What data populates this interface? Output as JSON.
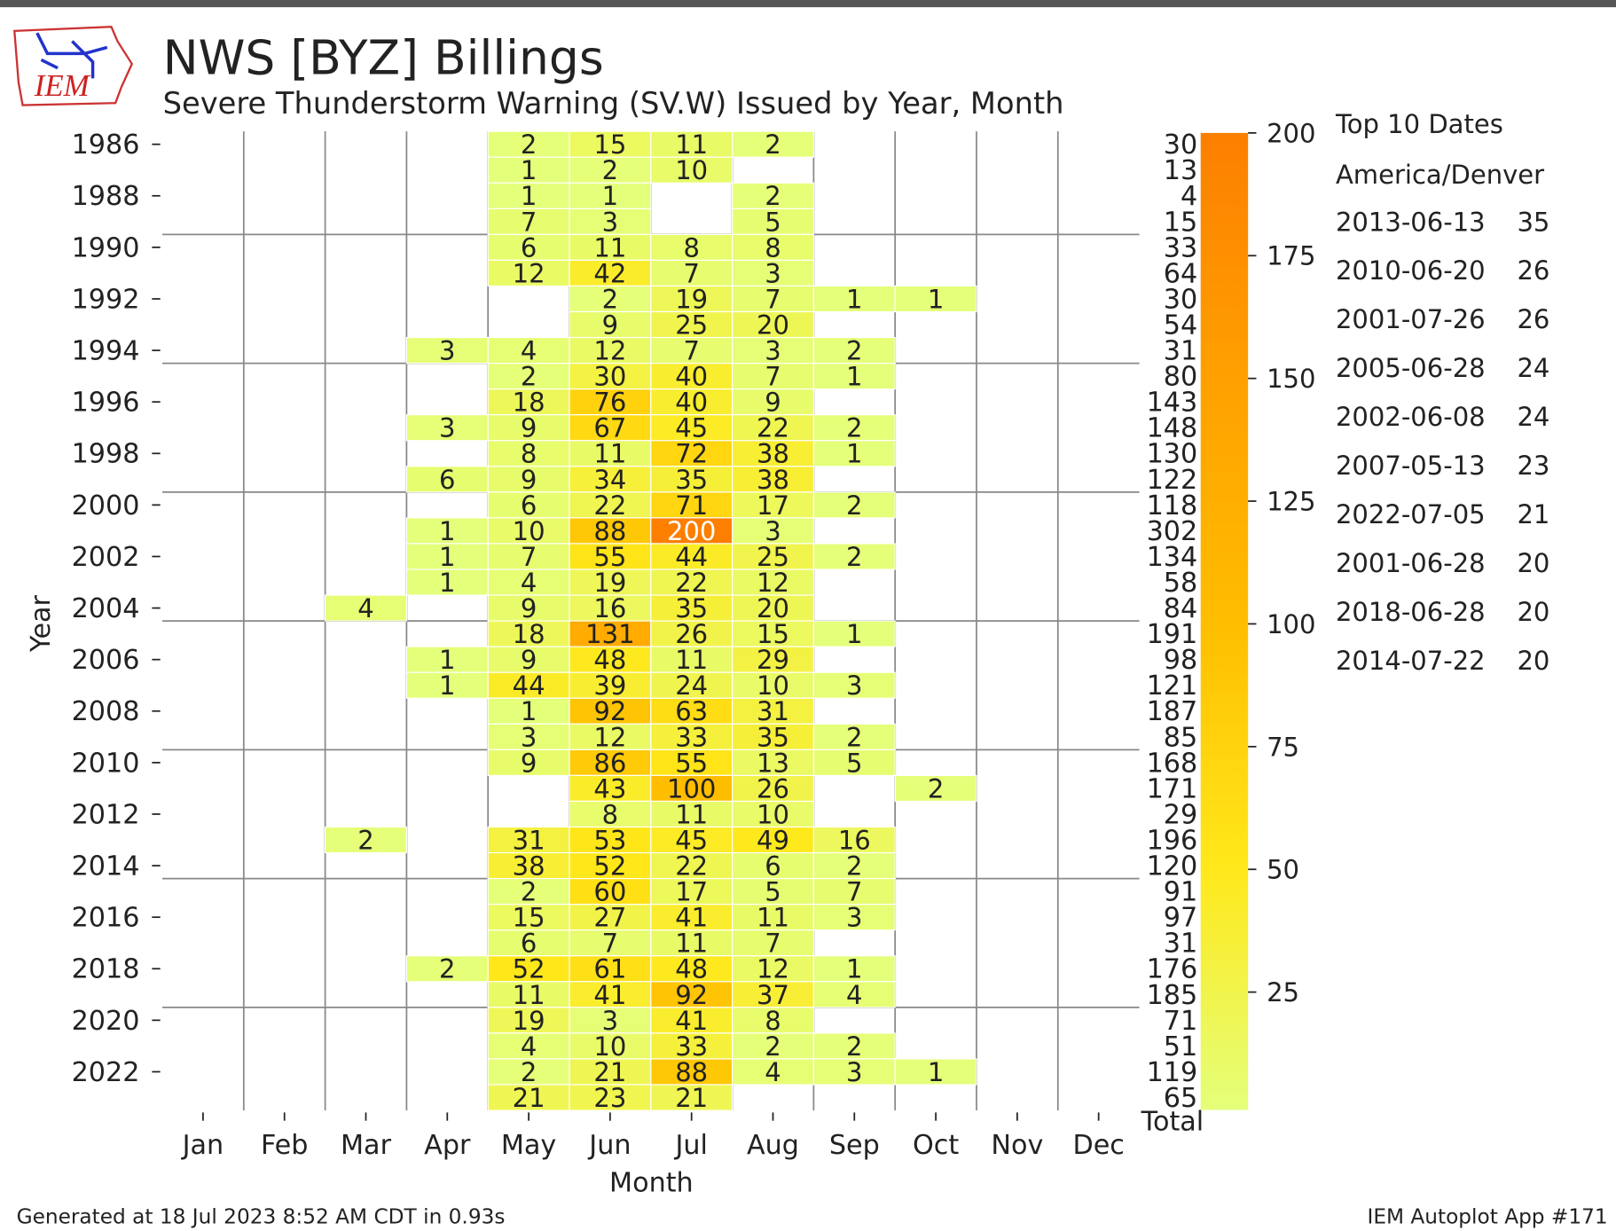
{
  "chart_data": {
    "type": "heatmap",
    "title": "NWS [BYZ] Billings",
    "subtitle": "Severe Thunderstorm Warning (SV.W) Issued by Year, Month",
    "xlabel": "Month",
    "ylabel": "Year",
    "total_label": "Total",
    "logo_text": "IEM",
    "footer_left": "Generated at 18 Jul 2023 8:52 AM CDT in 0.93s",
    "footer_right": "IEM Autoplot App #171",
    "categories": [
      "Jan",
      "Feb",
      "Mar",
      "Apr",
      "May",
      "Jun",
      "Jul",
      "Aug",
      "Sep",
      "Oct",
      "Nov",
      "Dec"
    ],
    "years": [
      1986,
      1987,
      1988,
      1989,
      1990,
      1991,
      1992,
      1993,
      1994,
      1995,
      1996,
      1997,
      1998,
      1999,
      2000,
      2001,
      2002,
      2003,
      2004,
      2005,
      2006,
      2007,
      2008,
      2009,
      2010,
      2011,
      2012,
      2013,
      2014,
      2015,
      2016,
      2017,
      2018,
      2019,
      2020,
      2021,
      2022,
      2023
    ],
    "yticks": [
      1986,
      1988,
      1990,
      1992,
      1994,
      1996,
      1998,
      2000,
      2002,
      2004,
      2006,
      2008,
      2010,
      2012,
      2014,
      2016,
      2018,
      2020,
      2022
    ],
    "values": [
      [
        null,
        null,
        null,
        null,
        2,
        15,
        11,
        2,
        null,
        null,
        null,
        null
      ],
      [
        null,
        null,
        null,
        null,
        1,
        2,
        10,
        null,
        null,
        null,
        null,
        null
      ],
      [
        null,
        null,
        null,
        null,
        1,
        1,
        null,
        2,
        null,
        null,
        null,
        null
      ],
      [
        null,
        null,
        null,
        null,
        7,
        3,
        null,
        5,
        null,
        null,
        null,
        null
      ],
      [
        null,
        null,
        null,
        null,
        6,
        11,
        8,
        8,
        null,
        null,
        null,
        null
      ],
      [
        null,
        null,
        null,
        null,
        12,
        42,
        7,
        3,
        null,
        null,
        null,
        null
      ],
      [
        null,
        null,
        null,
        null,
        null,
        2,
        19,
        7,
        1,
        1,
        null,
        null
      ],
      [
        null,
        null,
        null,
        null,
        null,
        9,
        25,
        20,
        null,
        null,
        null,
        null
      ],
      [
        null,
        null,
        null,
        3,
        4,
        12,
        7,
        3,
        2,
        null,
        null,
        null
      ],
      [
        null,
        null,
        null,
        null,
        2,
        30,
        40,
        7,
        1,
        null,
        null,
        null
      ],
      [
        null,
        null,
        null,
        null,
        18,
        76,
        40,
        9,
        null,
        null,
        null,
        null
      ],
      [
        null,
        null,
        null,
        3,
        9,
        67,
        45,
        22,
        2,
        null,
        null,
        null
      ],
      [
        null,
        null,
        null,
        null,
        8,
        11,
        72,
        38,
        1,
        null,
        null,
        null
      ],
      [
        null,
        null,
        null,
        6,
        9,
        34,
        35,
        38,
        null,
        null,
        null,
        null
      ],
      [
        null,
        null,
        null,
        null,
        6,
        22,
        71,
        17,
        2,
        null,
        null,
        null
      ],
      [
        null,
        null,
        null,
        1,
        10,
        88,
        200,
        3,
        null,
        null,
        null,
        null
      ],
      [
        null,
        null,
        null,
        1,
        7,
        55,
        44,
        25,
        2,
        null,
        null,
        null
      ],
      [
        null,
        null,
        null,
        1,
        4,
        19,
        22,
        12,
        null,
        null,
        null,
        null
      ],
      [
        null,
        null,
        4,
        null,
        9,
        16,
        35,
        20,
        null,
        null,
        null,
        null
      ],
      [
        null,
        null,
        null,
        null,
        18,
        131,
        26,
        15,
        1,
        null,
        null,
        null
      ],
      [
        null,
        null,
        null,
        1,
        9,
        48,
        11,
        29,
        null,
        null,
        null,
        null
      ],
      [
        null,
        null,
        null,
        1,
        44,
        39,
        24,
        10,
        3,
        null,
        null,
        null
      ],
      [
        null,
        null,
        null,
        null,
        1,
        92,
        63,
        31,
        null,
        null,
        null,
        null
      ],
      [
        null,
        null,
        null,
        null,
        3,
        12,
        33,
        35,
        2,
        null,
        null,
        null
      ],
      [
        null,
        null,
        null,
        null,
        9,
        86,
        55,
        13,
        5,
        null,
        null,
        null
      ],
      [
        null,
        null,
        null,
        null,
        null,
        43,
        100,
        26,
        null,
        2,
        null,
        null
      ],
      [
        null,
        null,
        null,
        null,
        null,
        8,
        11,
        10,
        null,
        null,
        null,
        null
      ],
      [
        null,
        null,
        2,
        null,
        31,
        53,
        45,
        49,
        16,
        null,
        null,
        null
      ],
      [
        null,
        null,
        null,
        null,
        38,
        52,
        22,
        6,
        2,
        null,
        null,
        null
      ],
      [
        null,
        null,
        null,
        null,
        2,
        60,
        17,
        5,
        7,
        null,
        null,
        null
      ],
      [
        null,
        null,
        null,
        null,
        15,
        27,
        41,
        11,
        3,
        null,
        null,
        null
      ],
      [
        null,
        null,
        null,
        null,
        6,
        7,
        11,
        7,
        null,
        null,
        null,
        null
      ],
      [
        null,
        null,
        null,
        2,
        52,
        61,
        48,
        12,
        1,
        null,
        null,
        null
      ],
      [
        null,
        null,
        null,
        null,
        11,
        41,
        92,
        37,
        4,
        null,
        null,
        null
      ],
      [
        null,
        null,
        null,
        null,
        19,
        3,
        41,
        8,
        null,
        null,
        null,
        null
      ],
      [
        null,
        null,
        null,
        null,
        4,
        10,
        33,
        2,
        2,
        null,
        null,
        null
      ],
      [
        null,
        null,
        null,
        null,
        2,
        21,
        88,
        4,
        3,
        1,
        null,
        null
      ],
      [
        null,
        null,
        null,
        null,
        21,
        23,
        21,
        null,
        null,
        null,
        null,
        null
      ]
    ],
    "totals": [
      30,
      13,
      4,
      15,
      33,
      64,
      30,
      54,
      31,
      80,
      143,
      148,
      130,
      122,
      118,
      302,
      134,
      58,
      84,
      191,
      98,
      121,
      187,
      85,
      168,
      171,
      29,
      196,
      120,
      91,
      97,
      31,
      176,
      185,
      71,
      51,
      119,
      65
    ],
    "colormap": [
      "#e4ff7a",
      "#ffe81a",
      "#ffbd00",
      "#ffa000",
      "#fc7f00"
    ],
    "colorbar": {
      "lim": [
        1,
        200
      ],
      "ticks": [
        25,
        50,
        75,
        100,
        125,
        150,
        175,
        200
      ]
    },
    "top10": {
      "title": "Top 10 Dates",
      "timezone": "America/Denver",
      "dates": [
        "2013-06-13",
        "2010-06-20",
        "2001-07-26",
        "2005-06-28",
        "2002-06-08",
        "2007-05-13",
        "2022-07-05",
        "2001-06-28",
        "2018-06-28",
        "2014-07-22"
      ],
      "counts": [
        35,
        26,
        26,
        24,
        24,
        23,
        21,
        20,
        20,
        20
      ]
    }
  }
}
